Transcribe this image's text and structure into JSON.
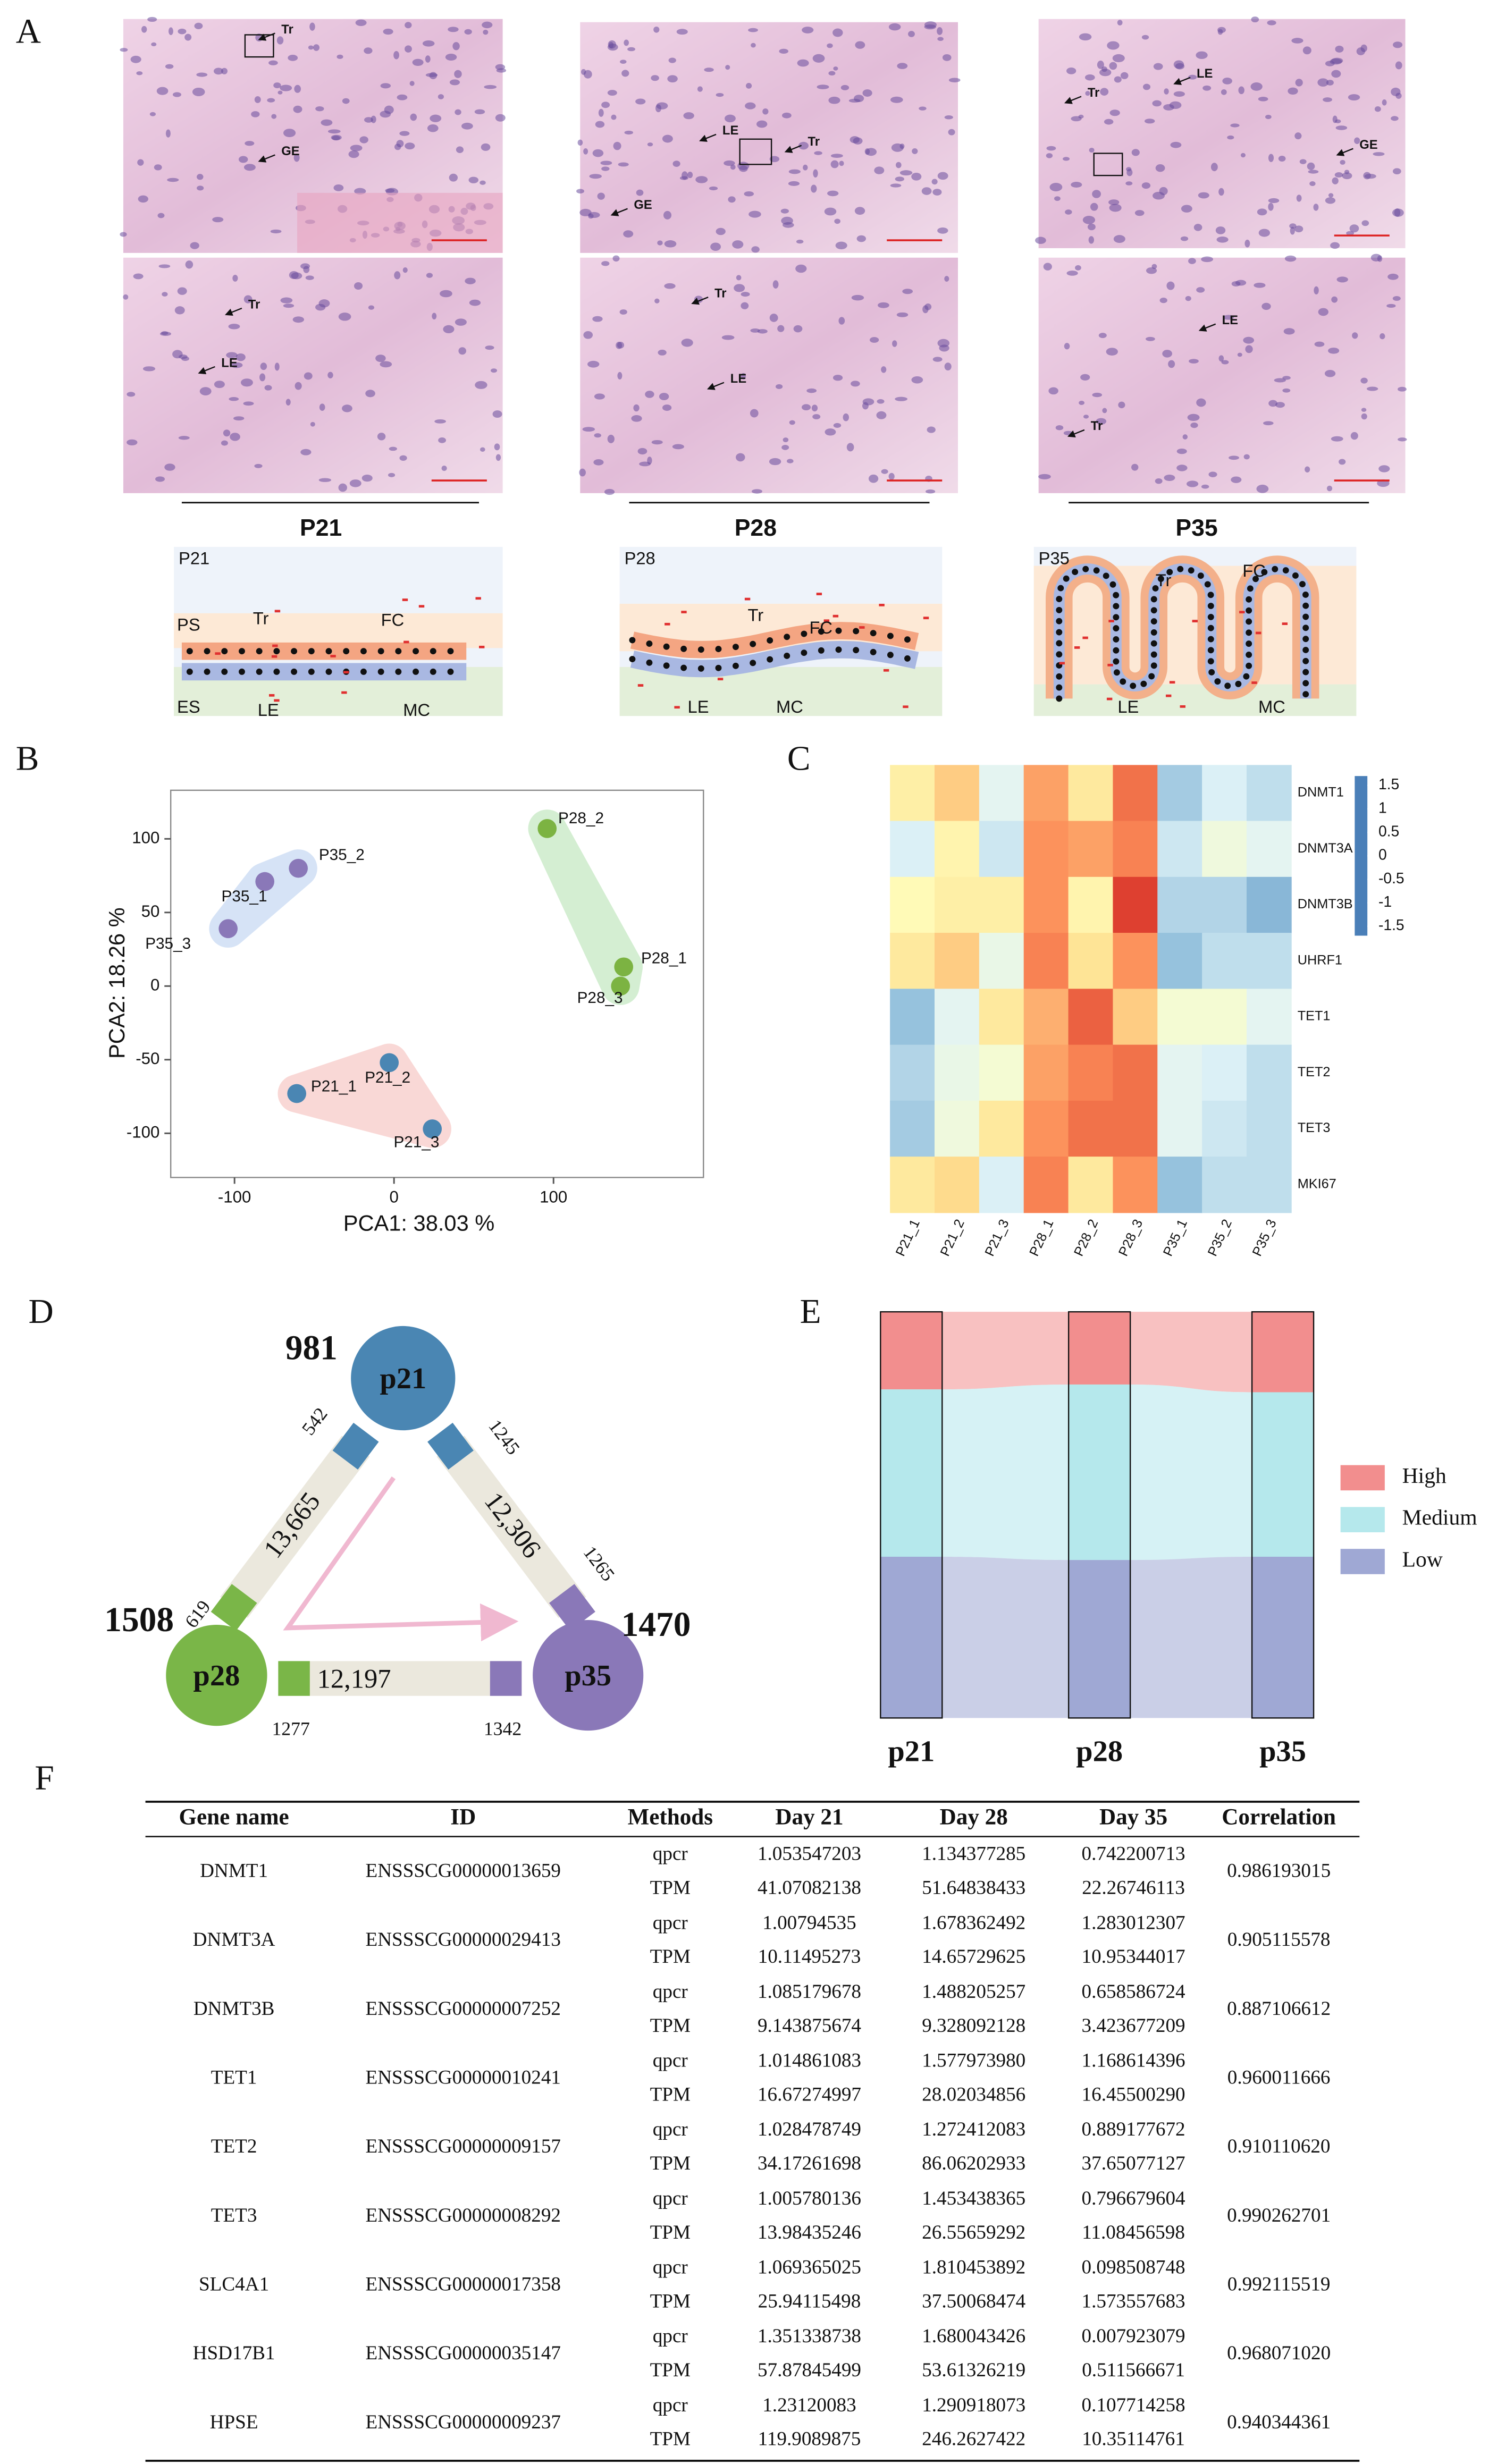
{
  "panel_labels": [
    "A",
    "B",
    "C",
    "D",
    "E",
    "F"
  ],
  "panel_a": {
    "micrographs": [
      [
        "Tr",
        "GE"
      ],
      [
        "LE",
        "Tr",
        "GE"
      ],
      [
        "LE",
        "Tr",
        "GE"
      ],
      [
        "Tr",
        "LE"
      ],
      [
        "Tr",
        "LE"
      ],
      [
        "LE",
        "Tr"
      ]
    ],
    "stages": [
      "P21",
      "P28",
      "P35"
    ],
    "schematics": [
      {
        "title": "P21",
        "labels": [
          "PS",
          "Tr",
          "FC",
          "ES",
          "LE",
          "MC"
        ]
      },
      {
        "title": "P28",
        "labels": [
          "Tr",
          "FC",
          "LE",
          "MC"
        ]
      },
      {
        "title": "P35",
        "labels": [
          "Tr",
          "FC",
          "LE",
          "MC"
        ]
      }
    ]
  },
  "chart_data": [
    {
      "type": "scatter",
      "xlabel": "PCA1: 38.03 %",
      "ylabel": "PCA2: 18.26 %",
      "xlim": [
        -140,
        194
      ],
      "ylim": [
        -130,
        133
      ],
      "xticks": [
        -100,
        0,
        100
      ],
      "yticks": [
        -100,
        -50,
        0,
        50,
        100
      ],
      "series": [
        {
          "color": "#4a86b3",
          "hull": "#f9d2d0",
          "labels": [
            "P21_1",
            "P21_2",
            "P21_3"
          ],
          "x": [
            -61,
            -3,
            24
          ],
          "values": [
            -73,
            -52,
            -97
          ]
        },
        {
          "color": "#7cb342",
          "hull": "#cdeccb",
          "labels": [
            "P28_2",
            "P28_1",
            "P28_3"
          ],
          "x": [
            96,
            144,
            142
          ],
          "values": [
            107,
            13,
            0
          ]
        },
        {
          "color": "#8a78b8",
          "hull": "#cfdff5",
          "labels": [
            "P35_2",
            "P35_1",
            "P35_3"
          ],
          "x": [
            -60,
            -81,
            -104
          ],
          "values": [
            80,
            71,
            39
          ]
        }
      ]
    },
    {
      "type": "heatmap",
      "rows": [
        "DNMT1",
        "DNMT3A",
        "DNMT3B",
        "UHRF1",
        "TET1",
        "TET2",
        "TET3",
        "MKI67"
      ],
      "columns": [
        "P21_1",
        "P21_2",
        "P21_3",
        "P28_1",
        "P28_2",
        "P28_3",
        "P35_1",
        "P35_2",
        "P35_3"
      ],
      "values": [
        [
          0.3,
          0.7,
          -0.5,
          1.0,
          0.4,
          1.3,
          -1.0,
          -0.6,
          -0.8
        ],
        [
          -0.6,
          0.2,
          -0.7,
          1.1,
          1.0,
          1.2,
          -0.7,
          -0.3,
          -0.5
        ],
        [
          0.1,
          0.3,
          0.3,
          1.1,
          0.2,
          1.6,
          -0.9,
          -0.9,
          -1.2
        ],
        [
          0.4,
          0.7,
          -0.4,
          1.2,
          0.5,
          1.1,
          -1.1,
          -0.8,
          -0.8
        ],
        [
          -1.1,
          -0.5,
          0.4,
          0.9,
          1.4,
          0.7,
          -0.2,
          -0.2,
          -0.5
        ],
        [
          -0.9,
          -0.4,
          -0.2,
          1.0,
          1.2,
          1.3,
          -0.5,
          -0.6,
          -0.8
        ],
        [
          -1.0,
          -0.3,
          0.4,
          1.1,
          1.3,
          1.3,
          -0.5,
          -0.7,
          -0.8
        ],
        [
          0.4,
          0.6,
          -0.6,
          1.2,
          0.4,
          1.1,
          -1.1,
          -0.8,
          -0.8
        ]
      ],
      "zlim": [
        -1.7,
        1.7
      ],
      "zticks": [
        1.5,
        1,
        0.5,
        0,
        -0.5,
        -1,
        -1.5
      ],
      "colors": [
        "#4a7fb8",
        "#91bfdb",
        "#e0f3f8",
        "#ffffbf",
        "#fee090",
        "#fc8d59",
        "#d73027"
      ]
    },
    {
      "type": "sankey",
      "columns": [
        "p21",
        "p28",
        "p35"
      ],
      "ylim": [
        0,
        100
      ],
      "series": [
        {
          "name": "High",
          "color": "#f28e8e",
          "values": [
            19.1,
            17.9,
            19.8
          ]
        },
        {
          "name": "Medium",
          "color": "#b5e8ec",
          "values": [
            41.2,
            43.2,
            40.5
          ]
        },
        {
          "name": "Low",
          "color": "#9fa8d4",
          "values": [
            39.7,
            38.9,
            39.7
          ]
        }
      ]
    }
  ],
  "panel_d": {
    "nodes": [
      {
        "label": "p21",
        "count": 981,
        "color": "#4a86b3"
      },
      {
        "label": "p28",
        "count": 1508,
        "color": "#7ab648"
      },
      {
        "label": "p35",
        "count": 1470,
        "color": "#8a78b8"
      }
    ],
    "links": [
      {
        "total": "13,665",
        "ends": [
          542,
          619
        ]
      },
      {
        "total": "12,306",
        "ends": [
          1245,
          1265
        ]
      },
      {
        "total": "12,197",
        "ends": [
          1277,
          1342
        ]
      }
    ]
  },
  "table": {
    "header": [
      "Gene name",
      "ID",
      "Methods",
      "Day 21",
      "Day 28",
      "Day 35",
      "Correlation"
    ],
    "methods": [
      "qpcr",
      "TPM"
    ],
    "rows": [
      {
        "gene": "DNMT1",
        "id": "ENSSSCG00000013659",
        "qpcr": [
          "1.053547203",
          "1.134377285",
          "0.742200713"
        ],
        "tpm": [
          "41.07082138",
          "51.64838433",
          "22.26746113"
        ],
        "correlation": "0.986193015"
      },
      {
        "gene": "DNMT3A",
        "id": "ENSSSCG00000029413",
        "qpcr": [
          "1.00794535",
          "1.678362492",
          "1.283012307"
        ],
        "tpm": [
          "10.11495273",
          "14.65729625",
          "10.95344017"
        ],
        "correlation": "0.905115578"
      },
      {
        "gene": "DNMT3B",
        "id": "ENSSSCG00000007252",
        "qpcr": [
          "1.085179678",
          "1.488205257",
          "0.658586724"
        ],
        "tpm": [
          "9.143875674",
          "9.328092128",
          "3.423677209"
        ],
        "correlation": "0.887106612"
      },
      {
        "gene": "TET1",
        "id": "ENSSSCG00000010241",
        "qpcr": [
          "1.014861083",
          "1.577973980",
          "1.168614396"
        ],
        "tpm": [
          "16.67274997",
          "28.02034856",
          "16.45500290"
        ],
        "correlation": "0.960011666"
      },
      {
        "gene": "TET2",
        "id": "ENSSSCG00000009157",
        "qpcr": [
          "1.028478749",
          "1.272412083",
          "0.889177672"
        ],
        "tpm": [
          "34.17261698",
          "86.06202933",
          "37.65077127"
        ],
        "correlation": "0.910110620"
      },
      {
        "gene": "TET3",
        "id": "ENSSSCG00000008292",
        "qpcr": [
          "1.005780136",
          "1.453438365",
          "0.796679604"
        ],
        "tpm": [
          "13.98435246",
          "26.55659292",
          "11.08456598"
        ],
        "correlation": "0.990262701"
      },
      {
        "gene": "SLC4A1",
        "id": "ENSSSCG00000017358",
        "qpcr": [
          "1.069365025",
          "1.810453892",
          "0.098508748"
        ],
        "tpm": [
          "25.94115498",
          "37.50068474",
          "1.573557683"
        ],
        "correlation": "0.992115519"
      },
      {
        "gene": "HSD17B1",
        "id": "ENSSSCG00000035147",
        "qpcr": [
          "1.351338738",
          "1.680043426",
          "0.007923079"
        ],
        "tpm": [
          "57.87845499",
          "53.61326219",
          "0.511566671"
        ],
        "correlation": "0.968071020"
      },
      {
        "gene": "HPSE",
        "id": "ENSSSCG00000009237",
        "qpcr": [
          "1.23120083",
          "1.290918073",
          "0.107714258"
        ],
        "tpm": [
          "119.9089875",
          "246.2627422",
          "10.35114761"
        ],
        "correlation": "0.940344361"
      }
    ]
  }
}
